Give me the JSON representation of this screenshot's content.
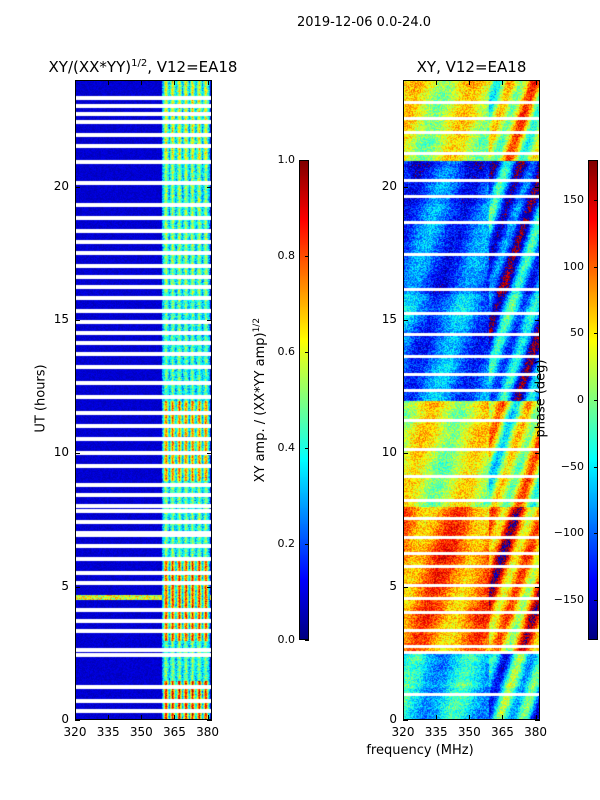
{
  "figure": {
    "suptitle": "2019-12-06 0.0-24.0",
    "shared_xlabel": "frequency (MHz)"
  },
  "chart_data": [
    {
      "type": "heatmap",
      "title_main": "XY/(XX*YY)",
      "title_sup": "1/2",
      "title_rest": ", V12=EA18",
      "ylabel": "UT (hours)",
      "xlim": [
        320,
        382
      ],
      "ylim": [
        0,
        24
      ],
      "xticks": [
        {
          "value": 320,
          "label": "320"
        },
        {
          "value": 335,
          "label": "335"
        },
        {
          "value": 350,
          "label": "350"
        },
        {
          "value": 365,
          "label": "365"
        },
        {
          "value": 380,
          "label": "380"
        }
      ],
      "yticks": [
        {
          "value": 0,
          "label": "0"
        },
        {
          "value": 5,
          "label": "5"
        },
        {
          "value": 10,
          "label": "10"
        },
        {
          "value": 15,
          "label": "15"
        },
        {
          "value": 20,
          "label": "20"
        }
      ],
      "colormap": "jet",
      "colorbar": {
        "label_main": "XY amp. / (XX*YY amp)",
        "label_sup": "1/2",
        "range": [
          0.0,
          1.0
        ],
        "ticks": [
          {
            "value": 0.0,
            "label": "0.0"
          },
          {
            "value": 0.2,
            "label": "0.2"
          },
          {
            "value": 0.4,
            "label": "0.4"
          },
          {
            "value": 0.6,
            "label": "0.6"
          },
          {
            "value": 0.8,
            "label": "0.8"
          },
          {
            "value": 1.0,
            "label": "1.0"
          }
        ]
      },
      "background_value": 0.05,
      "active_band_mhz": [
        359,
        381
      ],
      "channel_centers_mhz": [
        361,
        364,
        367,
        370,
        373,
        376,
        379
      ],
      "band_levels": [
        {
          "start": 0.0,
          "end": 1.5,
          "level": 0.85
        },
        {
          "start": 1.5,
          "end": 3.0,
          "level": 0.45
        },
        {
          "start": 3.0,
          "end": 6.0,
          "level": 0.8
        },
        {
          "start": 6.0,
          "end": 9.0,
          "level": 0.45
        },
        {
          "start": 9.0,
          "end": 12.0,
          "level": 0.72
        },
        {
          "start": 12.0,
          "end": 16.0,
          "level": 0.42
        },
        {
          "start": 16.0,
          "end": 21.0,
          "level": 0.48
        },
        {
          "start": 21.0,
          "end": 24.0,
          "level": 0.58
        }
      ],
      "strong_row_hours": [
        4.6
      ],
      "flagged_rows_hours": [
        0.4,
        0.8,
        1.3,
        2.5,
        2.7,
        3.4,
        3.8,
        4.2,
        5.2,
        5.6,
        6.1,
        6.6,
        7.0,
        7.1,
        7.5,
        7.9,
        8.1,
        8.5,
        8.9,
        9.6,
        10.1,
        10.6,
        11.1,
        11.6,
        12.2,
        12.7,
        13.3,
        13.8,
        14.2,
        14.6,
        15.0,
        15.4,
        15.9,
        16.3,
        16.7,
        17.1,
        17.6,
        18.0,
        18.4,
        18.9,
        19.4,
        20.2,
        21.0,
        21.6,
        22.0,
        22.5,
        22.8,
        23.1,
        23.4
      ]
    },
    {
      "type": "heatmap",
      "title": "XY, V12=EA18",
      "ylabel": "",
      "xlim": [
        320,
        382
      ],
      "ylim": [
        0,
        24
      ],
      "xticks": [
        {
          "value": 320,
          "label": "320"
        },
        {
          "value": 335,
          "label": "335"
        },
        {
          "value": 350,
          "label": "350"
        },
        {
          "value": 365,
          "label": "365"
        },
        {
          "value": 380,
          "label": "380"
        }
      ],
      "yticks": [
        {
          "value": 0,
          "label": "0"
        },
        {
          "value": 5,
          "label": "5"
        },
        {
          "value": 10,
          "label": "10"
        },
        {
          "value": 15,
          "label": "15"
        },
        {
          "value": 20,
          "label": "20"
        }
      ],
      "colormap": "jet",
      "colorbar": {
        "label": "phase (deg)",
        "range": [
          -180,
          180
        ],
        "ticks": [
          {
            "value": -150,
            "label": "−150"
          },
          {
            "value": -100,
            "label": "−100"
          },
          {
            "value": -50,
            "label": "−50"
          },
          {
            "value": 0,
            "label": "0"
          },
          {
            "value": 50,
            "label": "50"
          },
          {
            "value": 100,
            "label": "100"
          },
          {
            "value": 150,
            "label": "150"
          }
        ]
      },
      "phase_bands": [
        {
          "start": 0.0,
          "end": 2.5,
          "mean_deg": -60
        },
        {
          "start": 2.5,
          "end": 8.0,
          "mean_deg": 90
        },
        {
          "start": 8.0,
          "end": 12.0,
          "mean_deg": 30
        },
        {
          "start": 12.0,
          "end": 16.0,
          "mean_deg": -90
        },
        {
          "start": 16.0,
          "end": 21.0,
          "mean_deg": -110
        },
        {
          "start": 21.0,
          "end": 24.0,
          "mean_deg": 40
        }
      ],
      "flagged_rows_hours": [
        1.0,
        2.6,
        2.8,
        3.4,
        4.1,
        4.6,
        5.1,
        5.8,
        6.3,
        6.9,
        7.6,
        8.3,
        9.2,
        10.2,
        11.3,
        12.4,
        13.0,
        13.7,
        14.5,
        15.3,
        16.2,
        17.5,
        18.7,
        19.7,
        20.3,
        21.3,
        22.1,
        22.6,
        23.2
      ]
    }
  ]
}
